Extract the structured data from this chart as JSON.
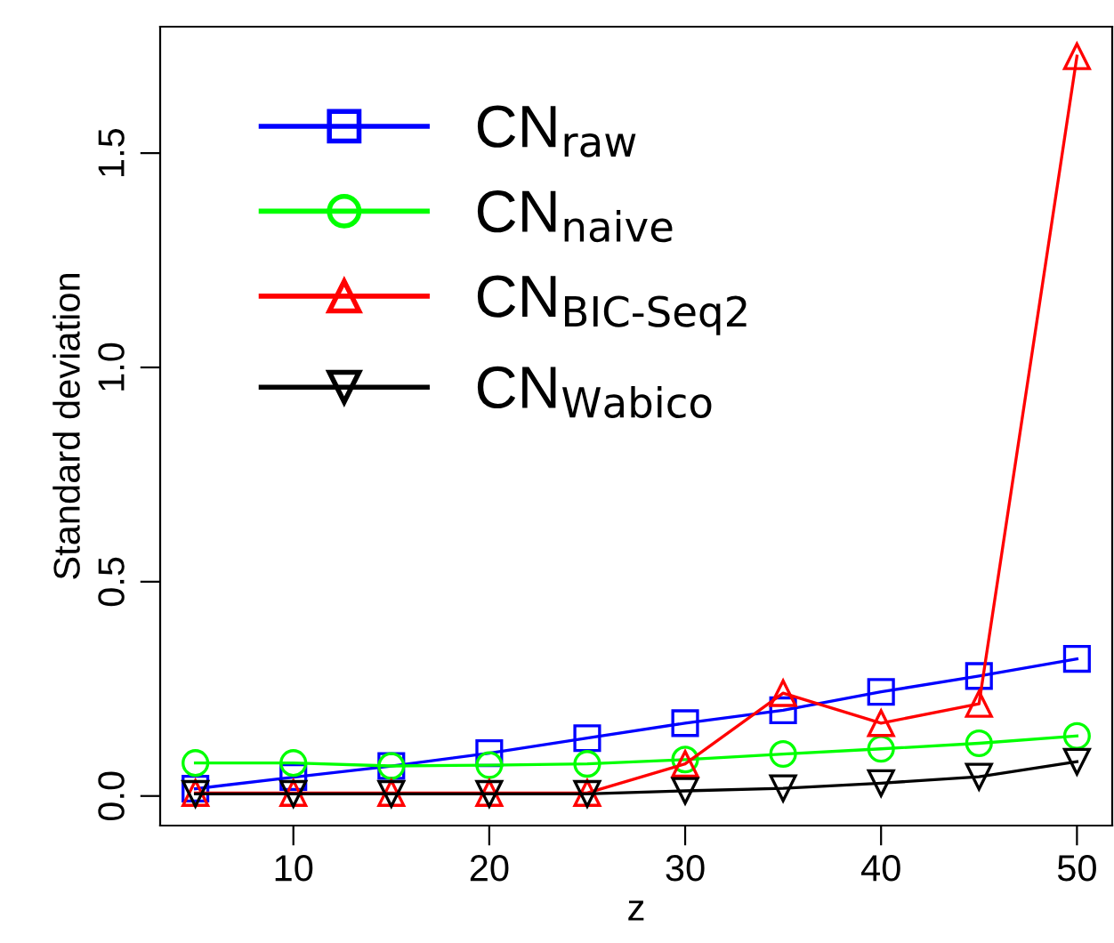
{
  "chart_data": {
    "type": "line",
    "xlabel": "z",
    "ylabel": "Standard deviation",
    "x": [
      5,
      10,
      15,
      20,
      25,
      30,
      35,
      40,
      45,
      50
    ],
    "series": [
      {
        "name": "CN$_{raw}$",
        "color": "#0000ff",
        "marker": "square",
        "values": [
          0.017,
          0.044,
          0.07,
          0.1,
          0.135,
          0.17,
          0.2,
          0.243,
          0.28,
          0.32
        ]
      },
      {
        "name": "CN$_{naive}$",
        "color": "#00ff00",
        "marker": "circle",
        "values": [
          0.077,
          0.077,
          0.07,
          0.072,
          0.075,
          0.085,
          0.098,
          0.11,
          0.123,
          0.14
        ]
      },
      {
        "name": "CN$_{BIC-Seq2}$",
        "color": "#ff0000",
        "marker": "triangle",
        "values": [
          0.007,
          0.007,
          0.007,
          0.007,
          0.007,
          0.075,
          0.24,
          0.17,
          0.215,
          1.726
        ]
      },
      {
        "name": "CN$_{Wabico}$",
        "color": "#000000",
        "marker": "triangle_down",
        "values": [
          0.005,
          0.005,
          0.005,
          0.005,
          0.005,
          0.012,
          0.018,
          0.03,
          0.045,
          0.08
        ]
      }
    ],
    "xlim": [
      3.2,
      51.8
    ],
    "ylim": [
      -0.069,
      1.795
    ],
    "xticks": [
      10,
      20,
      30,
      40,
      50
    ],
    "yticks": [
      {
        "value": 0,
        "label": "0.0"
      },
      {
        "value": 0.5,
        "label": "0.5"
      },
      {
        "value": 1,
        "label": "1.0"
      },
      {
        "value": 1.5,
        "label": "1.5"
      }
    ],
    "grid": false,
    "legend": "top left"
  }
}
